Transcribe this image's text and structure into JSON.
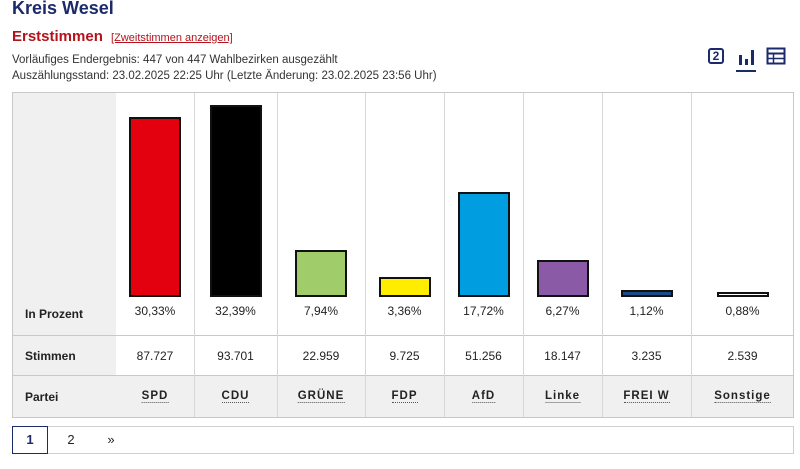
{
  "header": {
    "title": "Kreis Wesel",
    "section": "Erststimmen",
    "toggle_link": "[Zweitstimmen anzeigen]",
    "status_line": "Vorläufiges Endergebnis: 447 von 447 Wahlbezirken ausgezählt",
    "timestamp_line": "Auszählungsstand: 23.02.2025 22:25 Uhr (Letzte Änderung: 23.02.2025 23:56 Uhr)"
  },
  "view_icons": {
    "second_vote_label": "2",
    "active_view": "chart"
  },
  "row_labels": {
    "percent": "In Prozent",
    "votes": "Stimmen",
    "party": "Partei"
  },
  "chart_data": {
    "type": "bar",
    "categories": [
      "SPD",
      "CDU",
      "GRÜNE",
      "FDP",
      "AfD",
      "Linke",
      "FREI W",
      "Sonstige"
    ],
    "values": [
      30.33,
      32.39,
      7.94,
      3.36,
      17.72,
      6.27,
      1.12,
      0.88
    ],
    "percent_labels": [
      "30,33%",
      "32,39%",
      "7,94%",
      "3,36%",
      "17,72%",
      "6,27%",
      "1,12%",
      "0,88%"
    ],
    "votes_labels": [
      "87.727",
      "93.701",
      "22.959",
      "9.725",
      "51.256",
      "18.147",
      "3.235",
      "2.539"
    ],
    "colors": [
      "#e3000f",
      "#000000",
      "#a0cc6a",
      "#ffed00",
      "#009ee0",
      "#8b5aa6",
      "#1b4a8a",
      "#ffffff"
    ],
    "ylim": [
      0,
      32.39
    ]
  },
  "pagination": {
    "pages": [
      "1",
      "2"
    ],
    "next": "»",
    "current": "1"
  }
}
